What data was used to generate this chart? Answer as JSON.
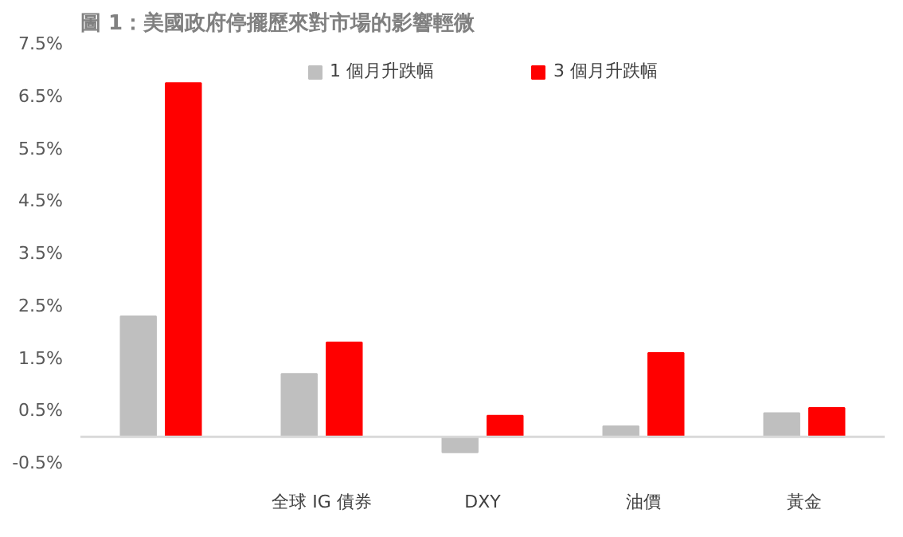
{
  "chart_data": {
    "type": "bar",
    "title": "圖 1：美國政府停擺歷來對市場的影響輕微",
    "categories": [
      null,
      "全球 IG 債券",
      "DXY",
      "油價",
      "黃金"
    ],
    "series": [
      {
        "name": "1 個月升跌幅",
        "color": "#bfbfbf",
        "values": [
          2.3,
          1.2,
          -0.3,
          0.2,
          0.45
        ]
      },
      {
        "name": "3 個月升跌幅",
        "color": "#ff0000",
        "values": [
          6.75,
          1.8,
          0.4,
          1.6,
          0.55
        ]
      }
    ],
    "ylim": [
      -0.5,
      7.5
    ],
    "yticks": [
      {
        "value": -0.5,
        "label": "-0.5%"
      },
      {
        "value": 0.5,
        "label": "0.5%"
      },
      {
        "value": 1.5,
        "label": "1.5%"
      },
      {
        "value": 2.5,
        "label": "2.5%"
      },
      {
        "value": 3.5,
        "label": "3.5%"
      },
      {
        "value": 4.5,
        "label": "4.5%"
      },
      {
        "value": 5.5,
        "label": "5.5%"
      },
      {
        "value": 6.5,
        "label": "6.5%"
      },
      {
        "value": 7.5,
        "label": "7.5%"
      }
    ],
    "grid": false,
    "legend": "top"
  }
}
